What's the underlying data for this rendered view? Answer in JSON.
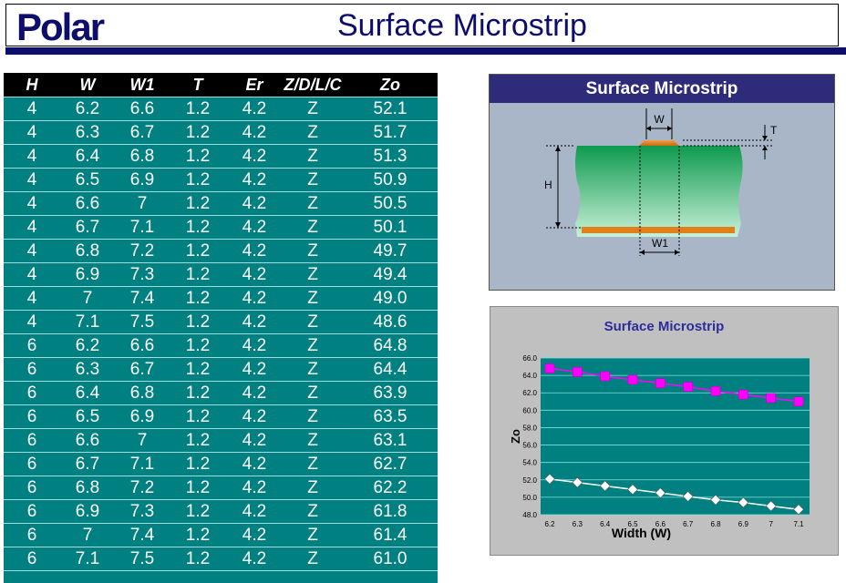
{
  "header": {
    "logo_text": "Polar",
    "title": "Surface Microstrip"
  },
  "table": {
    "columns": [
      "H",
      "W",
      "W1",
      "T",
      "Er",
      "Z/D/L/C",
      "Zo"
    ],
    "rows": [
      [
        "4",
        "6.2",
        "6.6",
        "1.2",
        "4.2",
        "Z",
        "52.1"
      ],
      [
        "4",
        "6.3",
        "6.7",
        "1.2",
        "4.2",
        "Z",
        "51.7"
      ],
      [
        "4",
        "6.4",
        "6.8",
        "1.2",
        "4.2",
        "Z",
        "51.3"
      ],
      [
        "4",
        "6.5",
        "6.9",
        "1.2",
        "4.2",
        "Z",
        "50.9"
      ],
      [
        "4",
        "6.6",
        "7",
        "1.2",
        "4.2",
        "Z",
        "50.5"
      ],
      [
        "4",
        "6.7",
        "7.1",
        "1.2",
        "4.2",
        "Z",
        "50.1"
      ],
      [
        "4",
        "6.8",
        "7.2",
        "1.2",
        "4.2",
        "Z",
        "49.7"
      ],
      [
        "4",
        "6.9",
        "7.3",
        "1.2",
        "4.2",
        "Z",
        "49.4"
      ],
      [
        "4",
        "7",
        "7.4",
        "1.2",
        "4.2",
        "Z",
        "49.0"
      ],
      [
        "4",
        "7.1",
        "7.5",
        "1.2",
        "4.2",
        "Z",
        "48.6"
      ],
      [
        "6",
        "6.2",
        "6.6",
        "1.2",
        "4.2",
        "Z",
        "64.8"
      ],
      [
        "6",
        "6.3",
        "6.7",
        "1.2",
        "4.2",
        "Z",
        "64.4"
      ],
      [
        "6",
        "6.4",
        "6.8",
        "1.2",
        "4.2",
        "Z",
        "63.9"
      ],
      [
        "6",
        "6.5",
        "6.9",
        "1.2",
        "4.2",
        "Z",
        "63.5"
      ],
      [
        "6",
        "6.6",
        "7",
        "1.2",
        "4.2",
        "Z",
        "63.1"
      ],
      [
        "6",
        "6.7",
        "7.1",
        "1.2",
        "4.2",
        "Z",
        "62.7"
      ],
      [
        "6",
        "6.8",
        "7.2",
        "1.2",
        "4.2",
        "Z",
        "62.2"
      ],
      [
        "6",
        "6.9",
        "7.3",
        "1.2",
        "4.2",
        "Z",
        "61.8"
      ],
      [
        "6",
        "7",
        "7.4",
        "1.2",
        "4.2",
        "Z",
        "61.4"
      ],
      [
        "6",
        "7.1",
        "7.5",
        "1.2",
        "4.2",
        "Z",
        "61.0"
      ]
    ]
  },
  "diagram": {
    "title": "Surface Microstrip",
    "labels": {
      "w": "W",
      "t": "T",
      "h": "H",
      "w1": "W1"
    },
    "colors": {
      "dielectric": "#1aa05a",
      "conductor": "#e08a2a",
      "background": "#a8b6c8"
    }
  },
  "chart_data": {
    "type": "line",
    "title": "Surface Microstrip",
    "xlabel": "Width (W)",
    "ylabel": "Zo",
    "categories": [
      "6.2",
      "6.3",
      "6.4",
      "6.5",
      "6.6",
      "6.7",
      "6.8",
      "6.9",
      "7",
      "7.1"
    ],
    "ylim": [
      48.0,
      66.0
    ],
    "yticks": [
      "48.0",
      "50.0",
      "52.0",
      "54.0",
      "56.0",
      "58.0",
      "60.0",
      "62.0",
      "64.0",
      "66.0"
    ],
    "grid": true,
    "plot_bg": "#008080",
    "series": [
      {
        "values": [
          64.8,
          64.4,
          63.9,
          63.5,
          63.1,
          62.7,
          62.2,
          61.8,
          61.4,
          61.0
        ],
        "color": "#ff00ff",
        "marker": "square"
      },
      {
        "values": [
          52.1,
          51.7,
          51.3,
          50.9,
          50.5,
          50.1,
          49.7,
          49.4,
          49.0,
          48.6
        ],
        "color": "#ffffff",
        "marker": "diamond"
      }
    ]
  }
}
